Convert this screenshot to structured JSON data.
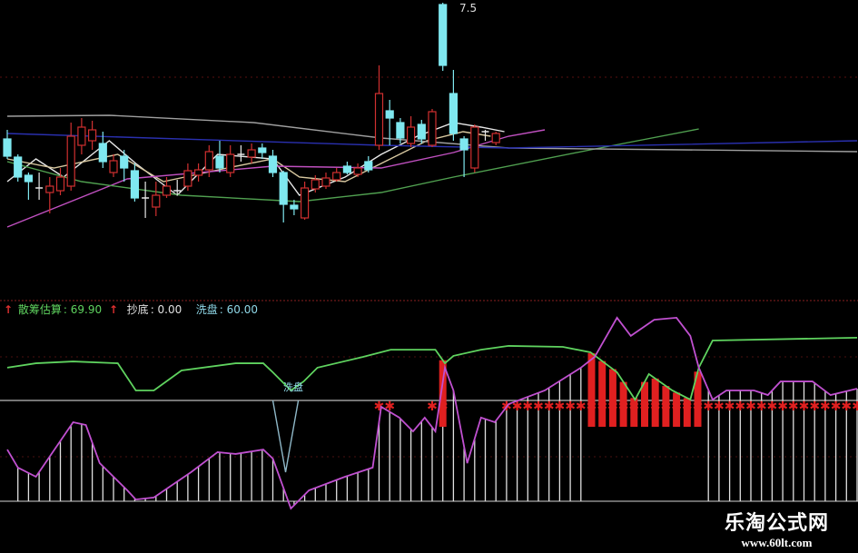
{
  "chart_data": [
    {
      "type": "candlestick",
      "title": "",
      "max_price_label": "7.5",
      "candles": [
        [
          6.11,
          6.21,
          5.89,
          5.92
        ],
        [
          5.91,
          5.94,
          5.64,
          5.69
        ],
        [
          5.71,
          5.74,
          5.44,
          5.64
        ],
        [
          5.57,
          5.74,
          5.44,
          5.57
        ],
        [
          5.52,
          5.69,
          5.29,
          5.59
        ],
        [
          5.54,
          5.79,
          5.49,
          5.69
        ],
        [
          5.59,
          6.29,
          5.54,
          6.14
        ],
        [
          6.04,
          6.34,
          5.94,
          6.24
        ],
        [
          6.09,
          6.31,
          5.99,
          6.21
        ],
        [
          6.06,
          6.19,
          5.79,
          5.86
        ],
        [
          5.74,
          5.94,
          5.69,
          5.87
        ],
        [
          5.92,
          5.99,
          5.64,
          5.79
        ],
        [
          5.76,
          5.84,
          5.42,
          5.46
        ],
        [
          5.46,
          5.64,
          5.24,
          5.46
        ],
        [
          5.36,
          5.64,
          5.26,
          5.49
        ],
        [
          5.49,
          5.69,
          5.46,
          5.59
        ],
        [
          5.54,
          5.66,
          5.49,
          5.54
        ],
        [
          5.59,
          5.84,
          5.54,
          5.76
        ],
        [
          5.71,
          5.84,
          5.64,
          5.77
        ],
        [
          5.77,
          6.04,
          5.69,
          5.97
        ],
        [
          5.92,
          6.09,
          5.74,
          5.79
        ],
        [
          5.74,
          6.04,
          5.69,
          5.94
        ],
        [
          5.94,
          6.04,
          5.86,
          5.94
        ],
        [
          5.91,
          6.06,
          5.84,
          5.99
        ],
        [
          6.01,
          6.06,
          5.89,
          5.96
        ],
        [
          5.92,
          5.99,
          5.69,
          5.74
        ],
        [
          5.74,
          5.76,
          5.19,
          5.39
        ],
        [
          5.38,
          5.44,
          5.27,
          5.34
        ],
        [
          5.24,
          5.64,
          5.22,
          5.57
        ],
        [
          5.56,
          5.71,
          5.52,
          5.66
        ],
        [
          5.59,
          5.74,
          5.56,
          5.68
        ],
        [
          5.66,
          5.79,
          5.64,
          5.74
        ],
        [
          5.81,
          5.86,
          5.72,
          5.74
        ],
        [
          5.72,
          5.84,
          5.69,
          5.79
        ],
        [
          5.86,
          5.92,
          5.74,
          5.77
        ],
        [
          6.04,
          6.92,
          5.99,
          6.61
        ],
        [
          6.42,
          6.54,
          6.04,
          6.34
        ],
        [
          6.29,
          6.34,
          6.06,
          6.12
        ],
        [
          6.06,
          6.36,
          6.02,
          6.24
        ],
        [
          6.27,
          6.32,
          6.06,
          6.11
        ],
        [
          6.04,
          6.44,
          6.02,
          6.41
        ],
        [
          7.59,
          7.61,
          6.86,
          6.92
        ],
        [
          6.61,
          6.87,
          6.09,
          6.17
        ],
        [
          6.11,
          6.14,
          5.69,
          5.99
        ],
        [
          5.79,
          6.27,
          5.74,
          6.24
        ],
        [
          6.19,
          6.21,
          6.09,
          6.19
        ],
        [
          6.07,
          6.19,
          6.04,
          6.17
        ]
      ],
      "moving_averages": [
        {
          "color": "#e8e8e8",
          "points": [
            [
              0,
              5.64
            ],
            [
              2.7,
              5.89
            ],
            [
              5.3,
              5.69
            ],
            [
              9.6,
              6.09
            ],
            [
              12.1,
              5.84
            ],
            [
              16,
              5.49
            ],
            [
              19.8,
              5.94
            ],
            [
              25,
              5.89
            ],
            [
              27.5,
              5.49
            ],
            [
              31.8,
              5.69
            ],
            [
              35.2,
              5.94
            ],
            [
              38.6,
              6.14
            ],
            [
              42,
              6.29
            ],
            [
              44.6,
              6.24
            ],
            [
              46.8,
              6.19
            ]
          ]
        },
        {
          "color": "#d8c8a0",
          "points": [
            [
              0,
              5.89
            ],
            [
              4.4,
              5.79
            ],
            [
              10.4,
              5.94
            ],
            [
              14.7,
              5.64
            ],
            [
              20.7,
              5.79
            ],
            [
              25,
              5.89
            ],
            [
              27.5,
              5.69
            ],
            [
              31.8,
              5.64
            ],
            [
              35.2,
              5.84
            ],
            [
              39.5,
              6.09
            ],
            [
              42.9,
              6.19
            ],
            [
              45.5,
              6.14
            ]
          ]
        },
        {
          "color": "#c050c0",
          "points": [
            [
              0,
              5.14
            ],
            [
              11.3,
              5.67
            ],
            [
              25,
              5.81
            ],
            [
              35.2,
              5.79
            ],
            [
              42,
              5.96
            ],
            [
              47.2,
              6.14
            ],
            [
              50.6,
              6.21
            ]
          ]
        },
        {
          "color": "#50a050",
          "points": [
            [
              0,
              5.86
            ],
            [
              7,
              5.64
            ],
            [
              16.4,
              5.49
            ],
            [
              27.5,
              5.42
            ],
            [
              35.2,
              5.52
            ],
            [
              42,
              5.69
            ],
            [
              54.9,
              5.99
            ],
            [
              65.1,
              6.22
            ]
          ]
        },
        {
          "color": "#a0a0a0",
          "points": [
            [
              0,
              6.36
            ],
            [
              9.6,
              6.37
            ],
            [
              23.2,
              6.29
            ],
            [
              35.2,
              6.12
            ],
            [
              47.2,
              6.01
            ],
            [
              80,
              5.97
            ]
          ]
        },
        {
          "color": "#2a30b0",
          "points": [
            [
              0,
              6.17
            ],
            [
              35.2,
              6.04
            ],
            [
              47.2,
              6.01
            ],
            [
              80,
              6.09
            ]
          ]
        }
      ]
    },
    {
      "type": "indicator",
      "legend": [
        {
          "label": "散筹估算",
          "value": "69.90",
          "color": "#5fd35f"
        },
        {
          "label": "抄底",
          "value": "0.00",
          "color": "#e0e0e0"
        },
        {
          "label": "洗盘",
          "value": "60.00",
          "color": "#8fd8e8"
        }
      ],
      "washout_annotation": "洗盘",
      "green_line": [
        [
          0,
          70.5
        ],
        [
          2.7,
          72.7
        ],
        [
          6.2,
          73.6
        ],
        [
          10.4,
          72.7
        ],
        [
          12.1,
          59.1
        ],
        [
          13.8,
          59.1
        ],
        [
          16.4,
          69.1
        ],
        [
          21.5,
          72.7
        ],
        [
          24.1,
          72.7
        ],
        [
          25,
          68.2
        ],
        [
          26.7,
          59.1
        ],
        [
          27.9,
          63.6
        ],
        [
          29.2,
          70.5
        ],
        [
          33.5,
          75.9
        ],
        [
          36.1,
          79.5
        ],
        [
          40.3,
          79.5
        ],
        [
          41.2,
          72.7
        ],
        [
          42,
          76.4
        ],
        [
          44.6,
          79.5
        ],
        [
          47.2,
          81.4
        ],
        [
          52.3,
          80.9
        ],
        [
          54.9,
          78.2
        ],
        [
          57.4,
          68.2
        ],
        [
          59.1,
          54.5
        ],
        [
          60.4,
          67.3
        ],
        [
          62.6,
          59.1
        ],
        [
          64.3,
          54.5
        ],
        [
          65.1,
          70.5
        ],
        [
          66.4,
          84.1
        ],
        [
          80,
          85.5
        ]
      ],
      "purple_line": [
        [
          0,
          29.5
        ],
        [
          1,
          20.5
        ],
        [
          2.7,
          15.9
        ],
        [
          6.2,
          43.2
        ],
        [
          7.4,
          41.8
        ],
        [
          8.7,
          22.7
        ],
        [
          11.3,
          9.1
        ],
        [
          12.1,
          4.5
        ],
        [
          13.8,
          5.5
        ],
        [
          17.3,
          18.2
        ],
        [
          19.8,
          28.2
        ],
        [
          21.5,
          27.3
        ],
        [
          24.1,
          29.5
        ],
        [
          25,
          25
        ],
        [
          26.7,
          0
        ],
        [
          28.4,
          9.1
        ],
        [
          31.8,
          15.9
        ],
        [
          34.4,
          20.5
        ],
        [
          35.2,
          50.9
        ],
        [
          36.9,
          45.5
        ],
        [
          38.2,
          38.6
        ],
        [
          39.3,
          45.5
        ],
        [
          40.3,
          38.6
        ],
        [
          41.2,
          70.5
        ],
        [
          42,
          59.1
        ],
        [
          43.3,
          22.7
        ],
        [
          44.6,
          45.5
        ],
        [
          45.9,
          43.2
        ],
        [
          47.2,
          52.3
        ],
        [
          50.6,
          59.1
        ],
        [
          54,
          70.5
        ],
        [
          55.3,
          75.9
        ],
        [
          57.4,
          95.5
        ],
        [
          58.7,
          86.4
        ],
        [
          60.9,
          94.5
        ],
        [
          63,
          95.5
        ],
        [
          64.3,
          86.4
        ],
        [
          65.1,
          70.5
        ],
        [
          66.4,
          54.5
        ],
        [
          67.7,
          59.1
        ],
        [
          70.3,
          59.1
        ],
        [
          71.6,
          56.8
        ],
        [
          72.8,
          63.6
        ],
        [
          75.8,
          63.6
        ],
        [
          77.5,
          56.8
        ],
        [
          80,
          60
        ]
      ],
      "washout_line": [
        [
          25,
          54.1
        ],
        [
          26.2,
          18.2
        ],
        [
          27.4,
          54.1
        ]
      ],
      "threshold": 54.1,
      "red_bar_indices": [
        41,
        55,
        56,
        57,
        58,
        59,
        60,
        61,
        62,
        63,
        64,
        65
      ],
      "red_star_indices": [
        35,
        36,
        40,
        41,
        47,
        48,
        49,
        50,
        51,
        52,
        53,
        54,
        55,
        56,
        57,
        58,
        59,
        60,
        61,
        62,
        63,
        64,
        65,
        66,
        67,
        68,
        69,
        70,
        71,
        72,
        73,
        74,
        75,
        76,
        77,
        78,
        79,
        80
      ],
      "white_bar_ranges": [
        [
          1,
          54
        ],
        [
          66,
          80
        ]
      ]
    }
  ],
  "watermark": {
    "title": "乐淘公式网",
    "url": "www.60lt.com"
  }
}
